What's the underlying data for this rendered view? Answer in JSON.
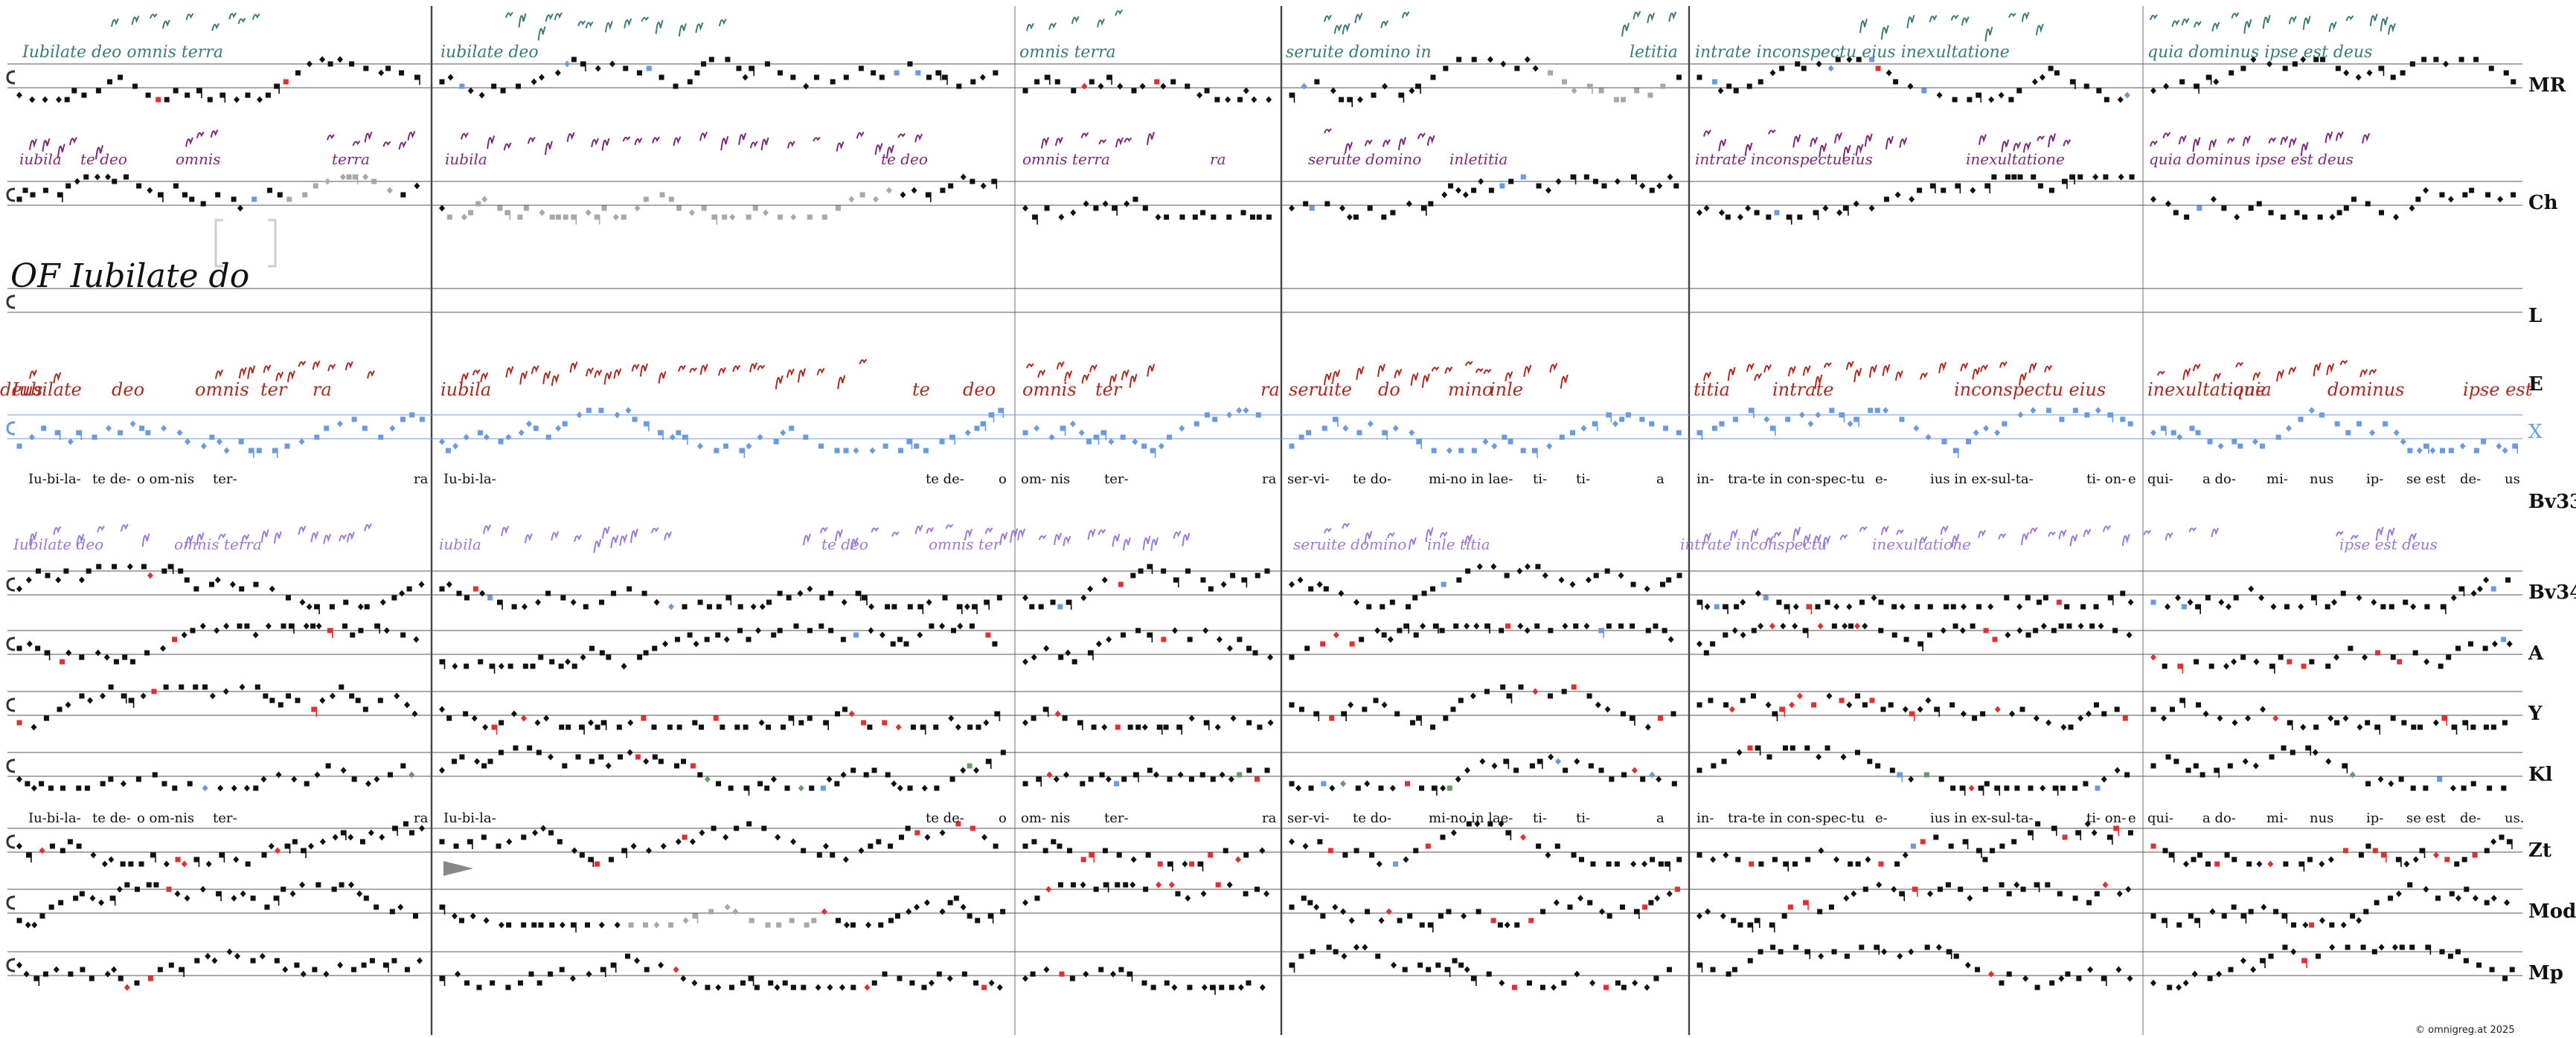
{
  "footer": {
    "symbol": "©",
    "site": "omnigreg.at",
    "year": "2025"
  },
  "colors": {
    "ink": "#111111",
    "staff": "#555555",
    "variant_red": "#e03030",
    "variant_blue": "#6a9ae0",
    "variant_green": "#6a9a6a",
    "faded": "#a8a8a8",
    "mr_neume": "#3d7a7a",
    "ch_neume": "#7a2a78",
    "e_neume": "#a82a20",
    "bv33_neume": "#9a7ad6",
    "x_row": "#6a9ae0"
  },
  "rows": [
    {
      "id": "MR",
      "label": "MR"
    },
    {
      "id": "Ch",
      "label": "Ch"
    },
    {
      "id": "L",
      "label": "L"
    },
    {
      "id": "E",
      "label": "E"
    },
    {
      "id": "X",
      "label": "X"
    },
    {
      "id": "Bv33",
      "label": "Bv33"
    },
    {
      "id": "Bv34",
      "label": "Bv34"
    },
    {
      "id": "A",
      "label": "A"
    },
    {
      "id": "Y",
      "label": "Y"
    },
    {
      "id": "Kl",
      "label": "Kl"
    },
    {
      "id": "Zt",
      "label": "Zt"
    },
    {
      "id": "Mod",
      "label": "Mod"
    },
    {
      "id": "Mp",
      "label": "Mp"
    }
  ],
  "lyrics_upper": [
    "Iu-bi-la-",
    "te de-",
    "o om-nis",
    "ter-",
    "ra",
    "Iu-bi-la-",
    "te de-",
    "o",
    "om- nis",
    "ter-",
    "ra",
    "ser-vi-",
    "te do-",
    "mi-no in lae-",
    "ti-",
    "ti-",
    "a",
    "in-",
    "tra-te in con-spec-tu",
    "e-",
    "ius in ex-sul-ta-",
    "ti- on-",
    "e",
    "qui-",
    "a do-",
    "mi-",
    "nus",
    "ip-",
    "se est",
    "de-",
    "us"
  ],
  "lyrics_lower": [
    "Iu-bi-la-",
    "te de-",
    "o om-nis",
    "ter-",
    "ra",
    "Iu-bi-la-",
    "te de-",
    "o",
    "om- nis",
    "ter-",
    "ra",
    "ser-vi-",
    "te do-",
    "mi-no in lae-",
    "ti-",
    "ti-",
    "a",
    "in-",
    "tra-te in con-spec-tu",
    "e-",
    "ius in ex-sul-ta-",
    "ti- on-",
    "e",
    "qui-",
    "a do-",
    "mi-",
    "nus",
    "ip-",
    "se est",
    "de-",
    "us."
  ],
  "manuscript_texts": {
    "MR": [
      "Iubilate deo omnis terra",
      "iubilate deo",
      "omnis terra",
      "seruite domino in",
      "letitia",
      "intrate inconspectu eius inexultatione",
      "quia dominus ipse est deus"
    ],
    "Ch": [
      "iubila",
      "te deo",
      "omnis",
      "terra",
      "iubila",
      "te deo",
      "omnis terra",
      "ra",
      "seruite domino",
      "inletitia",
      "intrate inconspectueius",
      "inexultatione",
      "quia dominus ipse est deus"
    ],
    "L": [
      "OF Iubilate do"
    ],
    "E": [
      "Iubilate",
      "deo",
      "omnis",
      "ter",
      "ra",
      "iubila",
      "te",
      "deo",
      "omnis",
      "ter",
      "ra",
      "seruite",
      "do",
      "mino",
      "inle",
      "titia",
      "intrate",
      "inconspectu eius",
      "inexultatione",
      "quia",
      "dominus",
      "ipse est",
      "deus"
    ],
    "Bv33": [
      "Iubilate deo",
      "omnis terra",
      "iubila",
      "te deo",
      "omnis ter",
      "seruite domino",
      "inle titia",
      "intrate inconspectu",
      "inexultatione",
      "ipse est deus"
    ]
  }
}
